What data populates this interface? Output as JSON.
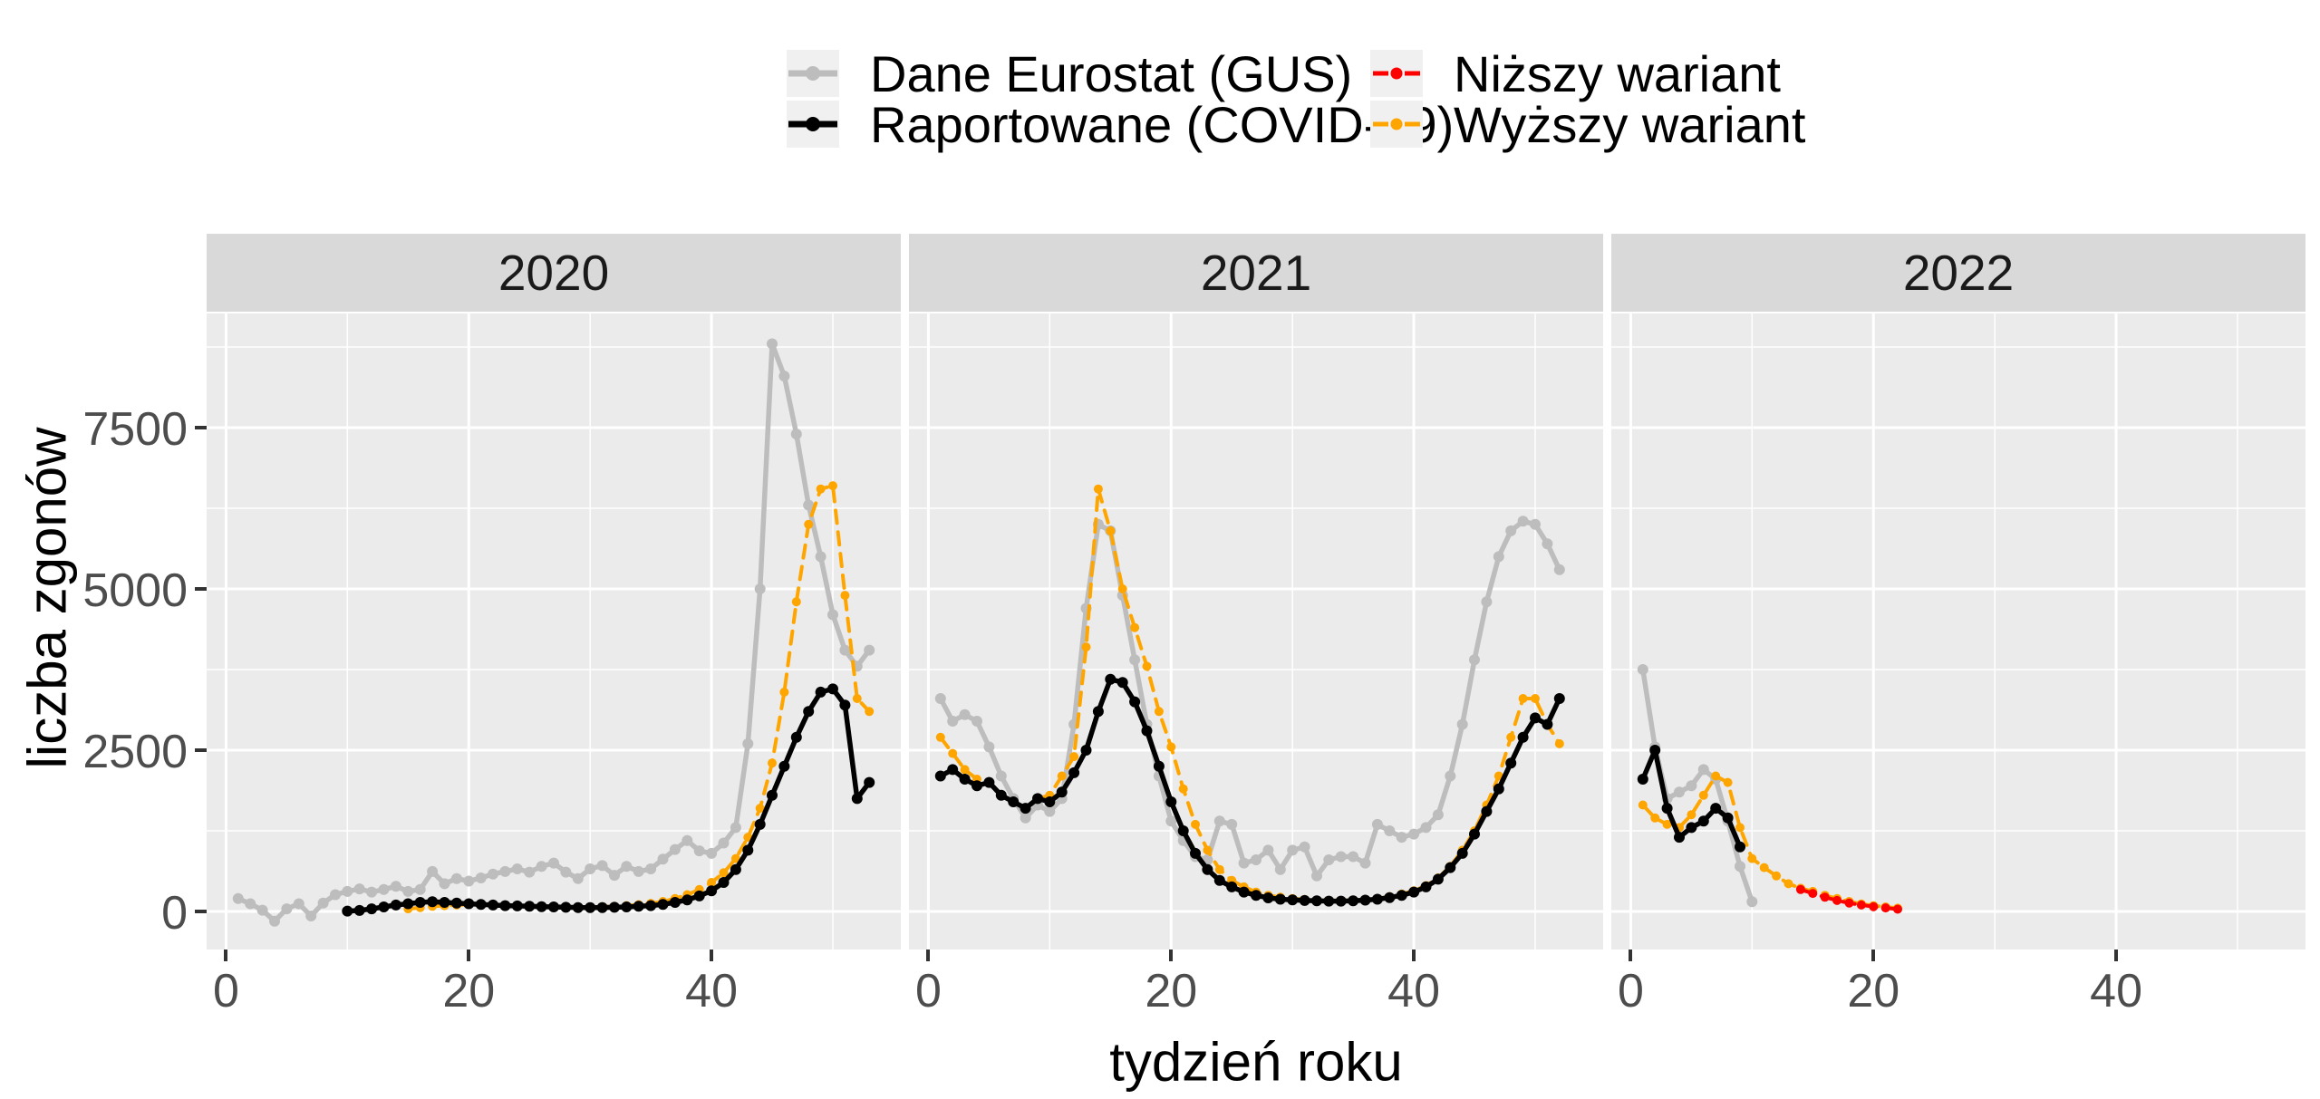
{
  "chart_data": {
    "type": "line",
    "xlabel": "tydzień roku",
    "ylabel": "liczba zgonów",
    "facet_labels": [
      "2020",
      "2021",
      "2022"
    ],
    "x_ticks": [
      0,
      20,
      40
    ],
    "x_minor": [
      10,
      30,
      50
    ],
    "x_range": [
      -1.6,
      55.6
    ],
    "y_ticks": [
      0,
      2500,
      5000,
      7500
    ],
    "y_minor": [
      1250,
      3750,
      6250,
      8750
    ],
    "y_range": [
      -590,
      9270
    ],
    "grid": "white-on-gray",
    "legend_position": "top-center",
    "series_meta": {
      "eurostat": {
        "label": "Dane Eurostat (GUS)",
        "color": "#bdbdbd",
        "dashed": false
      },
      "raportowane": {
        "label": "Raportowane (COVID-19)",
        "color": "#000000",
        "dashed": false
      },
      "nizszy": {
        "label": "Niższy wariant",
        "color": "#ff0000",
        "dashed": true
      },
      "wyzszy": {
        "label": "Wyższy wariant",
        "color": "#ffa500",
        "dashed": true
      }
    },
    "legend_order": [
      "eurostat",
      "nizszy",
      "raportowane",
      "wyzszy"
    ],
    "panels": [
      {
        "label": "2020",
        "series": [
          {
            "id": "eurostat",
            "start_week": 1,
            "values": [
              200,
              120,
              20,
              -150,
              40,
              120,
              -70,
              130,
              260,
              310,
              350,
              300,
              340,
              390,
              310,
              340,
              620,
              430,
              510,
              470,
              520,
              580,
              620,
              660,
              610,
              700,
              750,
              610,
              510,
              660,
              710,
              560,
              700,
              620,
              660,
              810,
              960,
              1100,
              940,
              900,
              1060,
              1300,
              2600,
              5000,
              8800,
              8300,
              7400,
              6300,
              5500,
              4600,
              4050,
              3800,
              4050
            ]
          },
          {
            "id": "wyzszy",
            "start_week": 15,
            "values": [
              40,
              60,
              80,
              90,
              100,
              105,
              105,
              100,
              95,
              90,
              85,
              80,
              80,
              75,
              70,
              70,
              75,
              80,
              90,
              105,
              125,
              155,
              200,
              260,
              340,
              450,
              600,
              820,
              1150,
              1600,
              2300,
              3400,
              4800,
              6000,
              6550,
              6600,
              4900,
              3300,
              3100
            ]
          },
          {
            "id": "raportowane",
            "start_week": 10,
            "values": [
              5,
              15,
              40,
              70,
              100,
              120,
              140,
              150,
              140,
              130,
              120,
              110,
              100,
              90,
              85,
              80,
              75,
              70,
              65,
              60,
              60,
              60,
              65,
              70,
              80,
              90,
              110,
              140,
              180,
              240,
              320,
              450,
              650,
              950,
              1350,
              1800,
              2250,
              2700,
              3100,
              3400,
              3450,
              3200,
              1750,
              2000
            ]
          }
        ]
      },
      {
        "label": "2021",
        "series": [
          {
            "id": "eurostat",
            "start_week": 1,
            "values": [
              3300,
              2950,
              3050,
              2950,
              2550,
              2100,
              1750,
              1450,
              1650,
              1550,
              1750,
              2900,
              4700,
              6000,
              5900,
              4900,
              3900,
              2900,
              2100,
              1400,
              1100,
              850,
              800,
              1400,
              1350,
              750,
              800,
              950,
              650,
              950,
              1000,
              550,
              800,
              850,
              850,
              750,
              1350,
              1250,
              1150,
              1200,
              1300,
              1500,
              2100,
              2900,
              3900,
              4800,
              5500,
              5900,
              6050,
              6000,
              5700,
              5300
            ]
          },
          {
            "id": "wyzszy",
            "start_week": 1,
            "values": [
              2700,
              2450,
              2200,
              2050,
              2000,
              1800,
              1700,
              1600,
              1750,
              1800,
              2100,
              2400,
              4100,
              6550,
              5900,
              5000,
              4400,
              3800,
              3100,
              2550,
              1900,
              1350,
              950,
              650,
              480,
              380,
              300,
              250,
              220,
              200,
              185,
              175,
              170,
              170,
              175,
              185,
              200,
              230,
              270,
              320,
              400,
              520,
              700,
              950,
              1250,
              1650,
              2100,
              2700,
              3300,
              3300,
              2900,
              2600
            ]
          },
          {
            "id": "raportowane",
            "start_week": 1,
            "values": [
              2100,
              2200,
              2050,
              1950,
              2000,
              1800,
              1700,
              1600,
              1750,
              1700,
              1850,
              2150,
              2500,
              3100,
              3600,
              3550,
              3250,
              2800,
              2250,
              1700,
              1250,
              900,
              650,
              480,
              380,
              300,
              250,
              210,
              190,
              180,
              170,
              165,
              160,
              160,
              165,
              175,
              190,
              215,
              250,
              300,
              380,
              500,
              680,
              900,
              1200,
              1550,
              1900,
              2300,
              2700,
              3000,
              2900,
              3300
            ]
          }
        ]
      },
      {
        "label": "2022",
        "series": [
          {
            "id": "eurostat",
            "start_week": 1,
            "values": [
              3750,
              2550,
              1750,
              1850,
              1950,
              2200,
              2050,
              1400,
              700,
              150
            ]
          },
          {
            "id": "wyzszy",
            "start_week": 1,
            "values": [
              1650,
              1450,
              1350,
              1300,
              1500,
              1800,
              2100,
              2000,
              1300,
              820,
              680,
              550,
              430,
              360,
              310,
              250,
              200,
              155,
              115,
              90,
              70,
              50
            ]
          },
          {
            "id": "nizszy",
            "start_week": 14,
            "values": [
              340,
              280,
              220,
              170,
              130,
              100,
              75,
              55,
              35
            ]
          },
          {
            "id": "raportowane",
            "start_week": 1,
            "values": [
              2050,
              2500,
              1600,
              1150,
              1300,
              1400,
              1600,
              1450,
              1000
            ]
          }
        ]
      }
    ],
    "style": {
      "panel_bg": "#ebebeb",
      "strip_bg": "#d9d9d9",
      "grid_color": "#ffffff",
      "tick_label_color": "#4d4d4d",
      "tick_mark_color": "#333333",
      "legend_key_bg": "#f0f0f0"
    }
  }
}
